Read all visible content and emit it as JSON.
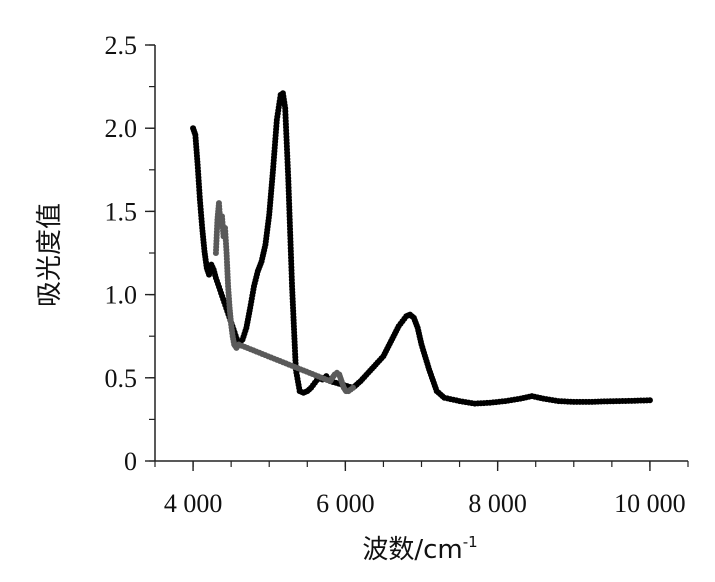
{
  "chart_data": {
    "type": "scatter",
    "title": "",
    "xlabel": "波数/cm",
    "xlabel_superscript": "-1",
    "ylabel": "吸光度值",
    "xlim": [
      3500,
      10500
    ],
    "ylim": [
      0,
      2.5
    ],
    "x_ticks": [
      4000,
      6000,
      8000,
      10000
    ],
    "x_tick_labels": [
      "4 000",
      "6 000",
      "8 000",
      "10 000"
    ],
    "x_minor_step": 500,
    "y_ticks": [
      0,
      0.5,
      1.0,
      1.5,
      2.0,
      2.5
    ],
    "y_tick_labels": [
      "0",
      "0.5",
      "1.0",
      "1.5",
      "2.0",
      "2.5"
    ],
    "y_minor_step": 0.25,
    "grid": false,
    "legend": "none",
    "series": [
      {
        "color": "#000000",
        "points": [
          [
            4000,
            2.0
          ],
          [
            4030,
            1.96
          ],
          [
            4060,
            1.78
          ],
          [
            4090,
            1.57
          ],
          [
            4120,
            1.4
          ],
          [
            4150,
            1.26
          ],
          [
            4180,
            1.16
          ],
          [
            4210,
            1.12
          ],
          [
            4240,
            1.18
          ],
          [
            4270,
            1.15
          ],
          [
            4300,
            1.1
          ],
          [
            4600,
            0.7
          ],
          [
            4650,
            0.73
          ],
          [
            4700,
            0.8
          ],
          [
            4750,
            0.92
          ],
          [
            4800,
            1.05
          ],
          [
            4850,
            1.14
          ],
          [
            4900,
            1.2
          ],
          [
            4950,
            1.3
          ],
          [
            5000,
            1.48
          ],
          [
            5050,
            1.75
          ],
          [
            5100,
            2.05
          ],
          [
            5150,
            2.2
          ],
          [
            5180,
            2.21
          ],
          [
            5210,
            2.12
          ],
          [
            5250,
            1.7
          ],
          [
            5300,
            1.05
          ],
          [
            5350,
            0.55
          ],
          [
            5400,
            0.42
          ],
          [
            5450,
            0.41
          ],
          [
            5500,
            0.42
          ],
          [
            5550,
            0.44
          ],
          [
            5600,
            0.47
          ],
          [
            5650,
            0.5
          ],
          [
            5700,
            0.49
          ],
          [
            5750,
            0.51
          ],
          [
            5800,
            0.48
          ],
          [
            6100,
            0.44
          ],
          [
            6200,
            0.48
          ],
          [
            6300,
            0.53
          ],
          [
            6400,
            0.58
          ],
          [
            6500,
            0.63
          ],
          [
            6600,
            0.72
          ],
          [
            6700,
            0.81
          ],
          [
            6800,
            0.87
          ],
          [
            6850,
            0.88
          ],
          [
            6900,
            0.86
          ],
          [
            6950,
            0.8
          ],
          [
            7000,
            0.7
          ],
          [
            7100,
            0.55
          ],
          [
            7200,
            0.42
          ],
          [
            7300,
            0.38
          ],
          [
            7500,
            0.36
          ],
          [
            7700,
            0.345
          ],
          [
            7900,
            0.35
          ],
          [
            8100,
            0.36
          ],
          [
            8300,
            0.375
          ],
          [
            8450,
            0.39
          ],
          [
            8600,
            0.375
          ],
          [
            8800,
            0.36
          ],
          [
            9000,
            0.355
          ],
          [
            9200,
            0.355
          ],
          [
            9400,
            0.358
          ],
          [
            9600,
            0.36
          ],
          [
            9800,
            0.362
          ],
          [
            10000,
            0.365
          ]
        ]
      },
      {
        "color": "#5a5a5a",
        "points": [
          [
            4300,
            1.25
          ],
          [
            4320,
            1.45
          ],
          [
            4340,
            1.55
          ],
          [
            4360,
            1.42
          ],
          [
            4380,
            1.47
          ],
          [
            4400,
            1.35
          ],
          [
            4420,
            1.4
          ],
          [
            4440,
            1.25
          ],
          [
            4460,
            1.05
          ],
          [
            4480,
            0.92
          ],
          [
            4500,
            0.82
          ],
          [
            4520,
            0.75
          ],
          [
            4540,
            0.7
          ],
          [
            4570,
            0.68
          ],
          [
            4600,
            0.7
          ],
          [
            5800,
            0.48
          ],
          [
            5830,
            0.5
          ],
          [
            5860,
            0.52
          ],
          [
            5890,
            0.53
          ],
          [
            5920,
            0.52
          ],
          [
            5950,
            0.48
          ],
          [
            5980,
            0.44
          ],
          [
            6010,
            0.42
          ],
          [
            6040,
            0.42
          ],
          [
            6070,
            0.43
          ],
          [
            6100,
            0.44
          ]
        ]
      }
    ]
  }
}
